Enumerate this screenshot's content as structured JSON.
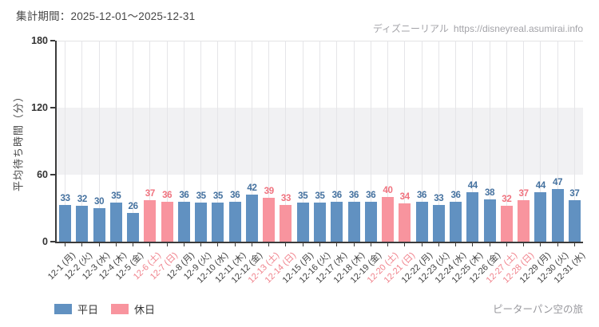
{
  "header": {
    "period_label": "集計期間：2025-12-01～2025-12-31",
    "site_name": "ディズニーリアル",
    "site_url": "https://disneyreal.asumirai.info"
  },
  "footer": {
    "attraction_name": "ピーターパン空の旅"
  },
  "legend": [
    {
      "label": "平日",
      "type": "weekday"
    },
    {
      "label": "休日",
      "type": "holiday"
    }
  ],
  "colors": {
    "bar_weekday": "#6191c1",
    "bar_holiday": "#f8949e",
    "value_label_weekday": "#44719f",
    "value_label_holiday": "#f0727e",
    "tick_label_weekday": "#3f3f3f",
    "tick_label_holiday": "#f0828c",
    "axis": "#3b3b3b",
    "gridline": "#e5e5e8",
    "band": "#f1f1f3"
  },
  "chart_data": {
    "type": "bar",
    "title": "",
    "xlabel": "",
    "ylabel": "平均待ち時間（分）",
    "ylim": [
      0,
      180
    ],
    "yticks": [
      0,
      60,
      120,
      180
    ],
    "grid": "vertical gridlines at each bar; shaded horizontal band between 60 and 120",
    "legend_position": "bottom-left",
    "categories": [
      "12-1 (月)",
      "12-2 (火)",
      "12-3 (水)",
      "12-4 (木)",
      "12-5 (金)",
      "12-6 (土)",
      "12-7 (日)",
      "12-8 (月)",
      "12-9 (火)",
      "12-10 (水)",
      "12-11 (木)",
      "12-12 (金)",
      "12-13 (土)",
      "12-14 (日)",
      "12-15 (月)",
      "12-16 (火)",
      "12-17 (水)",
      "12-18 (木)",
      "12-19 (金)",
      "12-20 (土)",
      "12-21 (日)",
      "12-22 (月)",
      "12-23 (火)",
      "12-24 (水)",
      "12-25 (木)",
      "12-26 (金)",
      "12-27 (土)",
      "12-28 (日)",
      "12-29 (月)",
      "12-30 (火)",
      "12-31 (水)"
    ],
    "values": [
      33,
      32,
      30,
      35,
      26,
      37,
      36,
      36,
      35,
      35,
      36,
      42,
      39,
      33,
      35,
      35,
      36,
      36,
      36,
      40,
      34,
      36,
      33,
      36,
      44,
      38,
      32,
      37,
      44,
      47,
      37
    ],
    "day_types": [
      "weekday",
      "weekday",
      "weekday",
      "weekday",
      "weekday",
      "holiday",
      "holiday",
      "weekday",
      "weekday",
      "weekday",
      "weekday",
      "weekday",
      "holiday",
      "holiday",
      "weekday",
      "weekday",
      "weekday",
      "weekday",
      "weekday",
      "holiday",
      "holiday",
      "weekday",
      "weekday",
      "weekday",
      "weekday",
      "weekday",
      "holiday",
      "holiday",
      "weekday",
      "weekday",
      "weekday"
    ]
  }
}
